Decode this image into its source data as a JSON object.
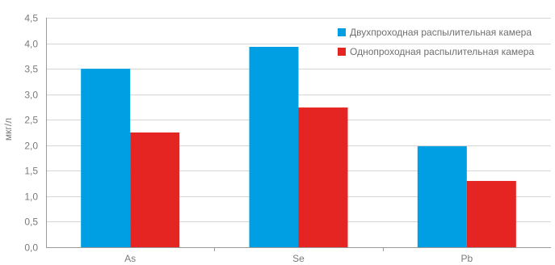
{
  "chart_data": {
    "type": "bar",
    "title": "",
    "xlabel": "",
    "ylabel": "мкг/л",
    "categories": [
      "As",
      "Se",
      "Pb"
    ],
    "ylim": [
      0,
      4.5
    ],
    "yticks": [
      "0,0",
      "0,5",
      "1,0",
      "1,5",
      "2,0",
      "2,5",
      "3,0",
      "3,5",
      "4,0",
      "4,5"
    ],
    "grid": true,
    "legend_position": "top-right",
    "series": [
      {
        "name": "Двухпроходная распылительная камера",
        "color": "#009fe3",
        "values": [
          3.5,
          3.93,
          1.98
        ]
      },
      {
        "name": "Однопроходная распылительная камера",
        "color": "#e52521",
        "values": [
          2.25,
          2.74,
          1.3
        ]
      }
    ]
  }
}
